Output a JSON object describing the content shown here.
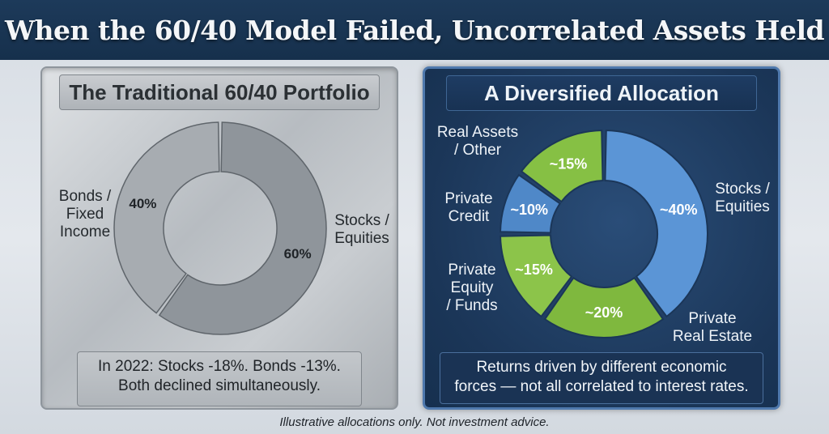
{
  "title": "When the 60/40 Model Failed, Uncorrelated Assets Held",
  "footer": "Illustrative allocations only. Not investment advice.",
  "chart_data": [
    {
      "type": "pie",
      "title": "The Traditional 60/40 Portfolio",
      "slices": [
        {
          "name": "Stocks / Equities",
          "label_lines": [
            "Stocks /",
            "Equities"
          ],
          "value": 60,
          "value_label": "60%",
          "color": "#8f959b"
        },
        {
          "name": "Bonds / Fixed Income",
          "label_lines": [
            "Bonds /",
            "Fixed",
            "Income"
          ],
          "value": 40,
          "value_label": "40%",
          "color": "#a7acb1"
        }
      ],
      "note": [
        "In 2022: Stocks -18%. Bonds -13%.",
        "Both declined simultaneously."
      ]
    },
    {
      "type": "pie",
      "title": "A Diversified Allocation",
      "slices": [
        {
          "name": "Stocks / Equities",
          "label_lines": [
            "Stocks /",
            "Equities"
          ],
          "value": 40,
          "value_label": "~40%",
          "color": "#5b95d6"
        },
        {
          "name": "Private Real Estate",
          "label_lines": [
            "Private",
            "Real Estate"
          ],
          "value": 20,
          "value_label": "~20%",
          "color": "#7fb83e"
        },
        {
          "name": "Private Equity / Funds",
          "label_lines": [
            "Private",
            "Equity",
            "/ Funds"
          ],
          "value": 15,
          "value_label": "~15%",
          "color": "#8cc44a"
        },
        {
          "name": "Private Credit",
          "label_lines": [
            "Private",
            "Credit"
          ],
          "value": 10,
          "value_label": "~10%",
          "color": "#4f88c8"
        },
        {
          "name": "Real Assets / Other",
          "label_lines": [
            "Real Assets",
            "/ Other"
          ],
          "value": 15,
          "value_label": "~15%",
          "color": "#86c044"
        }
      ],
      "note": [
        "Returns driven by different economic",
        "forces — not all correlated to interest rates."
      ]
    }
  ]
}
